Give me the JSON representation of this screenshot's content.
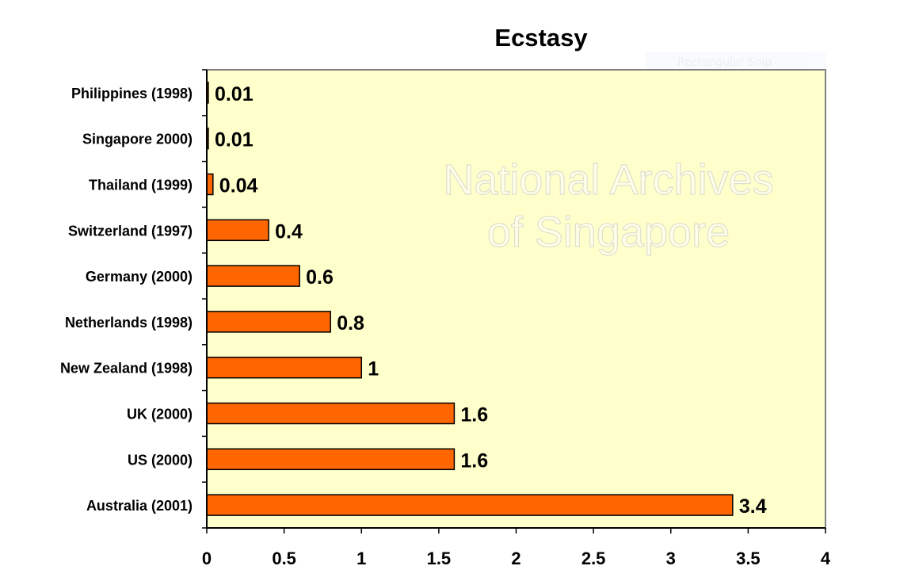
{
  "chart_data": {
    "type": "bar",
    "orientation": "horizontal",
    "title": "Ecstasy",
    "categories": [
      "Philippines (1998)",
      "Singapore 2000)",
      "Thailand (1999)",
      "Switzerland (1997)",
      "Germany (2000)",
      "Netherlands (1998)",
      "New Zealand (1998)",
      "UK (2000)",
      "US (2000)",
      "Australia (2001)"
    ],
    "values": [
      0.01,
      0.01,
      0.04,
      0.4,
      0.6,
      0.8,
      1,
      1.6,
      1.6,
      3.4
    ],
    "data_labels": [
      "0.01",
      "0.01",
      "0.04",
      "0.4",
      "0.6",
      "0.8",
      "1",
      "1.6",
      "1.6",
      "3.4"
    ],
    "xlim": [
      0,
      4
    ],
    "xticks": [
      "0",
      "0.5",
      "1",
      "1.5",
      "2",
      "2.5",
      "3",
      "3.5",
      "4"
    ],
    "xlabel": "",
    "ylabel": "",
    "grid": false,
    "colors": {
      "bar": "#ff6600",
      "plot_background": "#ffffcc",
      "border": "#808080"
    }
  },
  "watermark": "National Archives of Singapore",
  "overlay_text": "Rectangular Snip"
}
